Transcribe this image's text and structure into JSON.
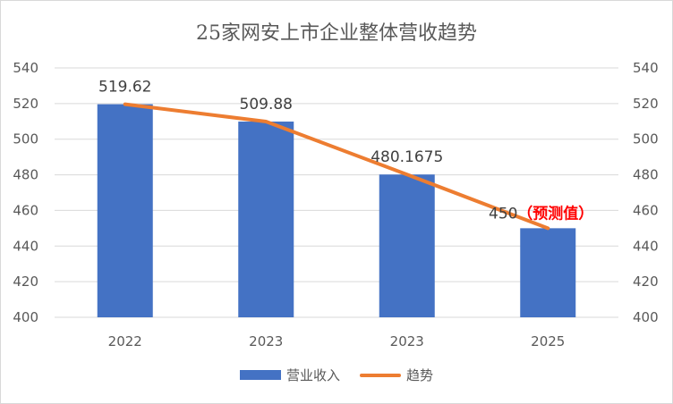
{
  "chart_data": {
    "type": "bar",
    "title": "25家网安上市企业整体营收趋势",
    "categories": [
      "2022",
      "2023",
      "2023",
      "2025"
    ],
    "series": [
      {
        "name": "营业收入",
        "type": "bar",
        "values": [
          519.62,
          509.88,
          480.1675,
          450
        ],
        "color": "#4472c4"
      },
      {
        "name": "趋势",
        "type": "line",
        "values": [
          519.62,
          509.88,
          480.1675,
          450
        ],
        "color": "#ed7d31"
      }
    ],
    "data_labels": [
      "519.62",
      "509.88",
      "480.1675",
      "450"
    ],
    "prediction_note": "（预测值）",
    "y_left": {
      "min": 400,
      "max": 540,
      "ticks": [
        "400",
        "420",
        "440",
        "460",
        "480",
        "500",
        "520",
        "540"
      ]
    },
    "y_right": {
      "min": 400,
      "max": 540,
      "ticks": [
        "400",
        "420",
        "440",
        "460",
        "480",
        "500",
        "520",
        "540"
      ]
    },
    "grid": true,
    "legend": "bottom"
  }
}
